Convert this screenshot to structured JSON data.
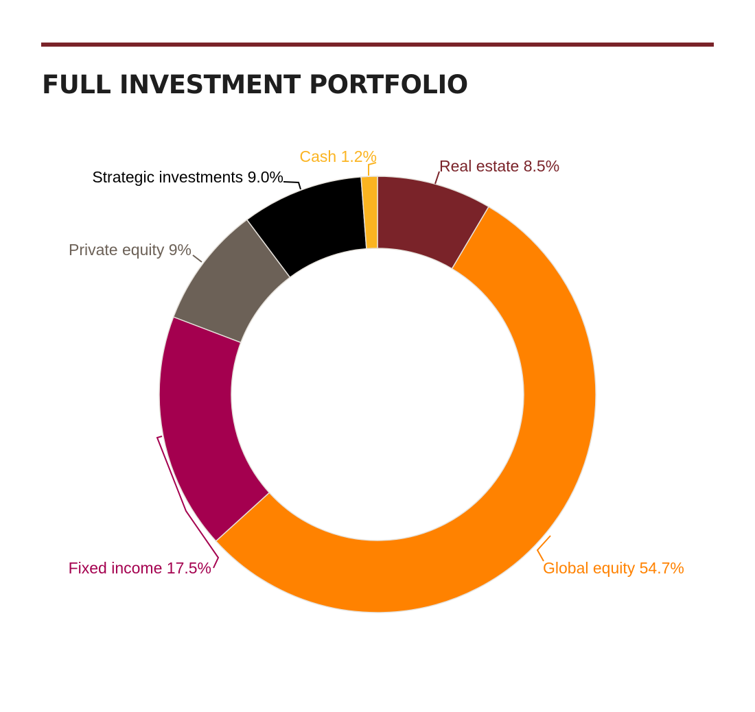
{
  "title": "FULL INVESTMENT PORTFOLIO",
  "colors": {
    "rule": "#7a2329",
    "title": "#1e1e1e",
    "separator": "#e6e2dc"
  },
  "chart_data": {
    "type": "pie",
    "donut": true,
    "title": "FULL INVESTMENT PORTFOLIO",
    "unit": "%",
    "slices": [
      {
        "label": "Real estate",
        "value": 8.5,
        "text": "Real estate 8.5%",
        "color": "#7a2329"
      },
      {
        "label": "Global equity",
        "value": 54.7,
        "text": "Global equity 54.7%",
        "color": "#ff8200"
      },
      {
        "label": "Fixed income",
        "value": 17.5,
        "text": "Fixed income 17.5%",
        "color": "#a4004f"
      },
      {
        "label": "Private equity",
        "value": 9,
        "text": "Private equity 9%",
        "color": "#6c6157"
      },
      {
        "label": "Strategic investments",
        "value": 9.0,
        "text": "Strategic investments 9.0%",
        "color": "#000000"
      },
      {
        "label": "Cash",
        "value": 1.2,
        "text": "Cash 1.2%",
        "color": "#fbb421"
      }
    ],
    "legend": "none",
    "labels": "outside"
  }
}
